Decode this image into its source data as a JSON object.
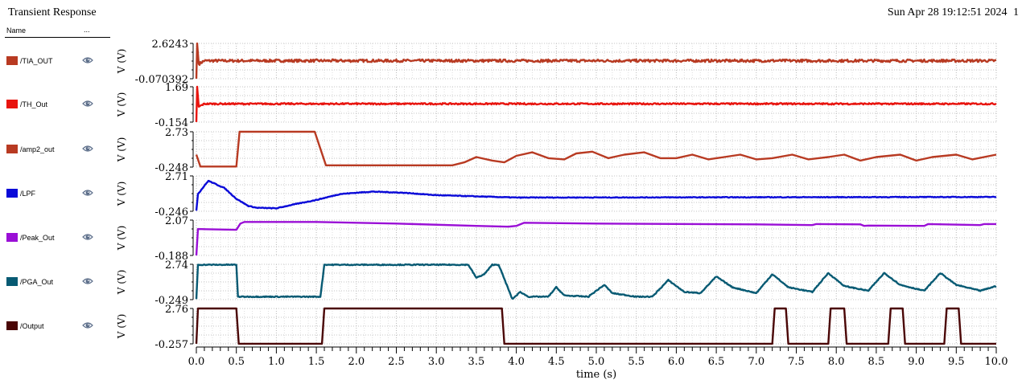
{
  "window": {
    "title": "Transient Response",
    "timestamp": "Sun Apr 28 19:12:51 2024",
    "page_number": "1"
  },
  "legend": {
    "header_name": "Name",
    "header_more": "...",
    "visibility_icon": "eye-icon"
  },
  "chart_data": {
    "type": "line",
    "title": "Transient Response",
    "xlabel": "time (s)",
    "xlim": [
      0.0,
      10.0
    ],
    "x_ticks": [
      "0.0",
      "0.5",
      "1.0",
      "1.5",
      "2.0",
      "2.5",
      "3.0",
      "3.5",
      "4.0",
      "4.5",
      "5.0",
      "5.5",
      "6.0",
      "6.5",
      "7.0",
      "7.5",
      "8.0",
      "8.5",
      "9.0",
      "9.5",
      "10.0"
    ],
    "grid": true,
    "legend_placement": "left",
    "series": [
      {
        "name": "/TIA_OUT",
        "color": "#b83a22",
        "ylabel": "V (V)",
        "y_top_label": "2.6243",
        "y_bottom_label": "-0.070392",
        "ylim": [
          -0.070392,
          2.6243
        ],
        "noise": 0.1,
        "points": [
          [
            0.0,
            -0.07
          ],
          [
            0.01,
            2.62
          ],
          [
            0.03,
            1.05
          ],
          [
            0.1,
            1.3
          ],
          [
            10.0,
            1.3
          ]
        ]
      },
      {
        "name": "/TH_Out",
        "color": "#e8140e",
        "ylabel": "V (V)",
        "y_top_label": "1.69",
        "y_bottom_label": "-0.154",
        "ylim": [
          -0.154,
          1.69
        ],
        "noise": 0.04,
        "points": [
          [
            0.0,
            -0.15
          ],
          [
            0.01,
            1.69
          ],
          [
            0.03,
            0.65
          ],
          [
            0.1,
            0.8
          ],
          [
            10.0,
            0.8
          ]
        ]
      },
      {
        "name": "/amp2_out",
        "color": "#b83a22",
        "ylabel": "V (V)",
        "y_top_label": "2.73",
        "y_bottom_label": "-0.248",
        "ylim": [
          -0.248,
          2.73
        ],
        "noise": 0.0,
        "points": [
          [
            0.0,
            0.8
          ],
          [
            0.05,
            -0.2
          ],
          [
            0.5,
            -0.2
          ],
          [
            0.54,
            2.73
          ],
          [
            1.48,
            2.73
          ],
          [
            1.62,
            -0.1
          ],
          [
            3.2,
            -0.1
          ],
          [
            3.35,
            0.15
          ],
          [
            3.5,
            0.6
          ],
          [
            3.7,
            0.3
          ],
          [
            3.85,
            0.15
          ],
          [
            4.0,
            0.7
          ],
          [
            4.2,
            1.0
          ],
          [
            4.4,
            0.5
          ],
          [
            4.6,
            0.4
          ],
          [
            4.75,
            0.9
          ],
          [
            4.95,
            1.05
          ],
          [
            5.15,
            0.5
          ],
          [
            5.35,
            0.8
          ],
          [
            5.6,
            1.0
          ],
          [
            5.8,
            0.5
          ],
          [
            6.0,
            0.5
          ],
          [
            6.2,
            0.8
          ],
          [
            6.4,
            0.4
          ],
          [
            6.6,
            0.6
          ],
          [
            6.8,
            0.8
          ],
          [
            7.0,
            0.4
          ],
          [
            7.2,
            0.5
          ],
          [
            7.45,
            0.8
          ],
          [
            7.65,
            0.4
          ],
          [
            7.9,
            0.6
          ],
          [
            8.1,
            0.8
          ],
          [
            8.3,
            0.3
          ],
          [
            8.5,
            0.6
          ],
          [
            8.8,
            0.8
          ],
          [
            9.0,
            0.3
          ],
          [
            9.2,
            0.6
          ],
          [
            9.5,
            0.8
          ],
          [
            9.7,
            0.4
          ],
          [
            10.0,
            0.8
          ]
        ]
      },
      {
        "name": "/LPF",
        "color": "#0a0ad8",
        "ylabel": "V (V)",
        "y_top_label": "2.71",
        "y_bottom_label": "-0.246",
        "ylim": [
          -0.246,
          2.71
        ],
        "noise": 0.03,
        "points": [
          [
            0.0,
            -0.2
          ],
          [
            0.02,
            1.2
          ],
          [
            0.15,
            2.3
          ],
          [
            0.35,
            1.7
          ],
          [
            0.5,
            0.8
          ],
          [
            0.65,
            0.2
          ],
          [
            0.75,
            0.05
          ],
          [
            1.0,
            0.0
          ],
          [
            1.2,
            0.3
          ],
          [
            1.5,
            0.7
          ],
          [
            1.8,
            1.2
          ],
          [
            2.2,
            1.4
          ],
          [
            2.6,
            1.3
          ],
          [
            3.0,
            1.1
          ],
          [
            3.5,
            1.0
          ],
          [
            4.0,
            0.9
          ],
          [
            10.0,
            0.95
          ]
        ]
      },
      {
        "name": "/Peak_Out",
        "color": "#9a0fd6",
        "ylabel": "V (V)",
        "y_top_label": "2.07",
        "y_bottom_label": "-0.188",
        "ylim": [
          -0.188,
          2.07
        ],
        "noise": 0.0,
        "points": [
          [
            0.0,
            -0.19
          ],
          [
            0.02,
            1.5
          ],
          [
            0.5,
            1.45
          ],
          [
            0.55,
            1.85
          ],
          [
            0.6,
            1.95
          ],
          [
            1.5,
            1.95
          ],
          [
            2.5,
            1.85
          ],
          [
            3.5,
            1.7
          ],
          [
            3.9,
            1.65
          ],
          [
            4.0,
            1.7
          ],
          [
            4.1,
            1.9
          ],
          [
            5.0,
            1.85
          ],
          [
            7.0,
            1.8
          ],
          [
            7.7,
            1.75
          ],
          [
            7.75,
            1.82
          ],
          [
            8.3,
            1.8
          ],
          [
            8.35,
            1.7
          ],
          [
            8.4,
            1.72
          ],
          [
            9.1,
            1.7
          ],
          [
            9.15,
            1.82
          ],
          [
            9.8,
            1.75
          ],
          [
            9.85,
            1.82
          ],
          [
            10.0,
            1.82
          ]
        ]
      },
      {
        "name": "/PGA_Out",
        "color": "#075a73",
        "ylabel": "V (V)",
        "y_top_label": "2.74",
        "y_bottom_label": "-0.249",
        "ylim": [
          -0.249,
          2.74
        ],
        "noise": 0.04,
        "points": [
          [
            0.0,
            -0.2
          ],
          [
            0.02,
            2.7
          ],
          [
            0.5,
            2.7
          ],
          [
            0.52,
            0.0
          ],
          [
            1.55,
            0.0
          ],
          [
            1.6,
            2.7
          ],
          [
            3.4,
            2.7
          ],
          [
            3.5,
            1.6
          ],
          [
            3.6,
            1.9
          ],
          [
            3.7,
            2.7
          ],
          [
            3.78,
            2.7
          ],
          [
            3.85,
            1.5
          ],
          [
            3.95,
            -0.2
          ],
          [
            4.05,
            0.4
          ],
          [
            4.15,
            0.0
          ],
          [
            4.4,
            0.0
          ],
          [
            4.5,
            0.8
          ],
          [
            4.6,
            0.1
          ],
          [
            4.9,
            0.0
          ],
          [
            5.1,
            1.0
          ],
          [
            5.2,
            0.3
          ],
          [
            5.5,
            0.0
          ],
          [
            5.7,
            0.0
          ],
          [
            5.9,
            1.4
          ],
          [
            6.1,
            0.4
          ],
          [
            6.3,
            0.3
          ],
          [
            6.5,
            1.7
          ],
          [
            6.7,
            0.8
          ],
          [
            7.0,
            0.3
          ],
          [
            7.2,
            1.9
          ],
          [
            7.4,
            0.8
          ],
          [
            7.7,
            0.4
          ],
          [
            7.9,
            2.0
          ],
          [
            8.1,
            0.9
          ],
          [
            8.4,
            0.5
          ],
          [
            8.6,
            2.0
          ],
          [
            8.8,
            1.0
          ],
          [
            9.1,
            0.5
          ],
          [
            9.3,
            2.0
          ],
          [
            9.5,
            1.0
          ],
          [
            9.8,
            0.5
          ],
          [
            10.0,
            0.9
          ]
        ]
      },
      {
        "name": "/Output",
        "color": "#4a0606",
        "ylabel": "V (V)",
        "y_top_label": "2.76",
        "y_bottom_label": "-0.257",
        "ylim": [
          -0.257,
          2.76
        ],
        "noise": 0.0,
        "points": [
          [
            0.0,
            -0.25
          ],
          [
            0.02,
            2.76
          ],
          [
            0.5,
            2.76
          ],
          [
            0.53,
            -0.25
          ],
          [
            1.57,
            -0.25
          ],
          [
            1.6,
            2.76
          ],
          [
            3.82,
            2.76
          ],
          [
            3.85,
            -0.25
          ],
          [
            7.2,
            -0.25
          ],
          [
            7.23,
            2.76
          ],
          [
            7.37,
            2.76
          ],
          [
            7.4,
            -0.25
          ],
          [
            7.9,
            -0.25
          ],
          [
            7.93,
            2.76
          ],
          [
            8.1,
            2.76
          ],
          [
            8.13,
            -0.25
          ],
          [
            8.65,
            -0.25
          ],
          [
            8.68,
            2.76
          ],
          [
            8.83,
            2.76
          ],
          [
            8.86,
            -0.25
          ],
          [
            9.35,
            -0.25
          ],
          [
            9.38,
            2.76
          ],
          [
            9.53,
            2.76
          ],
          [
            9.56,
            -0.25
          ],
          [
            10.0,
            -0.25
          ]
        ]
      }
    ]
  }
}
